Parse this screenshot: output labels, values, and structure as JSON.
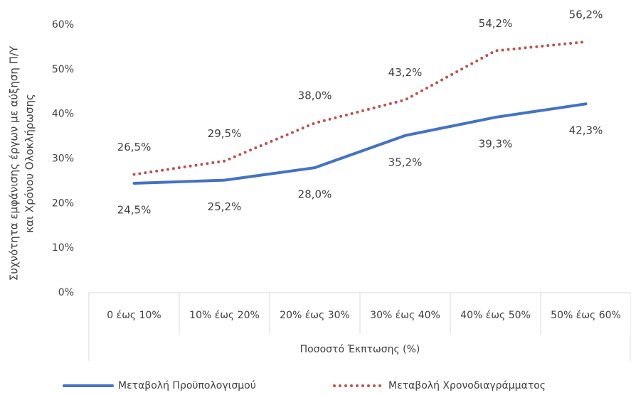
{
  "chart_data": {
    "type": "line",
    "ylabel": [
      "Συχνότητα εμφάνισης έργων με αύξηση Π/Υ",
      "και Χρόνου Ολοκλήρωσης"
    ],
    "xlabel": "Ποσοστό Έκπτωσης (%)",
    "categories": [
      "0 έως 10%",
      "10% έως 20%",
      "20% έως 30%",
      "30% έως 40%",
      "40% έως 50%",
      "50% έως 60%"
    ],
    "series": [
      {
        "name": "Μεταβολή Προϋπολογισμού",
        "color": "#4472c4",
        "style": "solid",
        "label_position": "below",
        "values": [
          24.5,
          25.2,
          28.0,
          35.2,
          39.3,
          42.3
        ],
        "value_labels": [
          "24,5%",
          "25,2%",
          "28,0%",
          "35,2%",
          "39,3%",
          "42,3%"
        ]
      },
      {
        "name": "Μεταβολή Χρονοδιαγράμματος",
        "color": "#c0504d",
        "style": "dotted",
        "label_position": "above",
        "values": [
          26.5,
          29.5,
          38.0,
          43.2,
          54.2,
          56.2
        ],
        "value_labels": [
          "26,5%",
          "29,5%",
          "38,0%",
          "43,2%",
          "54,2%",
          "56,2%"
        ]
      }
    ],
    "ylim": [
      0,
      60
    ],
    "yticks": [
      {
        "value": 0,
        "label": "0%"
      },
      {
        "value": 10,
        "label": "10%"
      },
      {
        "value": 20,
        "label": "20%"
      },
      {
        "value": 30,
        "label": "30%"
      },
      {
        "value": 40,
        "label": "40%"
      },
      {
        "value": 50,
        "label": "50%"
      },
      {
        "value": 60,
        "label": "60%"
      }
    ],
    "grid": false,
    "legend": "bottom"
  }
}
